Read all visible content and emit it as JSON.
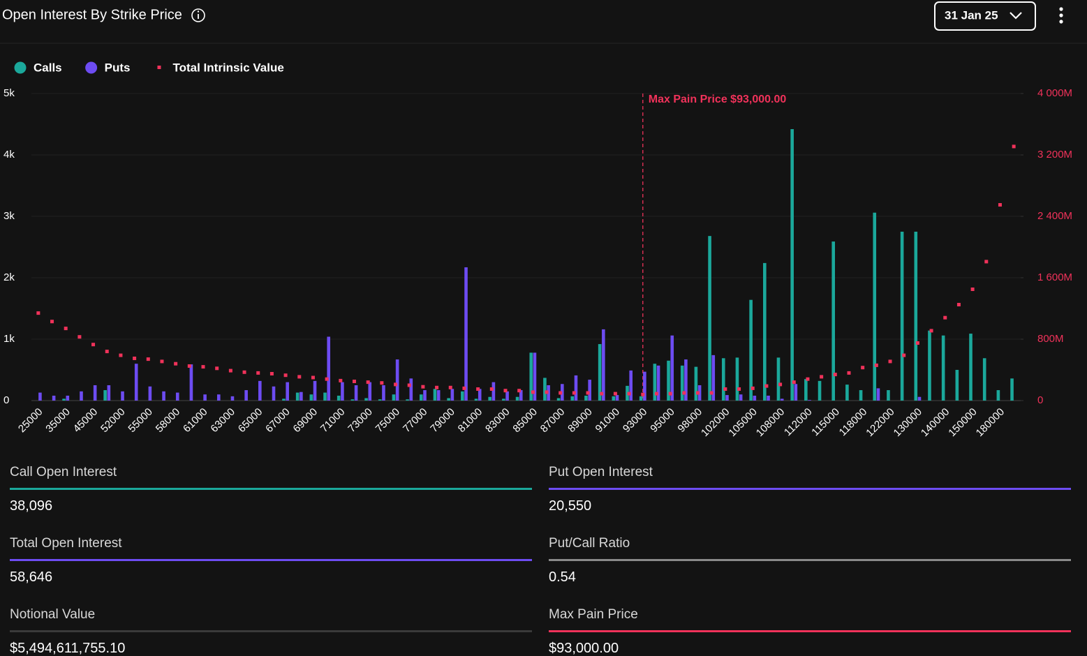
{
  "header": {
    "title": "Open Interest By Strike Price",
    "date": "31 Jan 25"
  },
  "chart_data": {
    "type": "bar",
    "categories": [
      "25000",
      null,
      "35000",
      null,
      "45000",
      null,
      "52000",
      null,
      "55000",
      null,
      "58000",
      null,
      "61000",
      null,
      "63000",
      null,
      "65000",
      null,
      "67000",
      null,
      "69000",
      null,
      "71000",
      null,
      "73000",
      null,
      "75000",
      null,
      "77000",
      null,
      "79000",
      null,
      "81000",
      null,
      "83000",
      null,
      "85000",
      null,
      "87000",
      null,
      "89000",
      null,
      "91000",
      null,
      "93000",
      null,
      "95000",
      null,
      "98000",
      null,
      "102000",
      null,
      "105000",
      null,
      "108000",
      null,
      "112000",
      null,
      "115000",
      null,
      "118000",
      null,
      "122000",
      null,
      "130000",
      null,
      "140000",
      null,
      "150000",
      null,
      "180000",
      null
    ],
    "series": [
      {
        "name": "Calls",
        "color": "#1ba89b",
        "type": "bar",
        "values": [
          0,
          0,
          30,
          0,
          0,
          170,
          0,
          0,
          0,
          0,
          0,
          0,
          0,
          0,
          0,
          0,
          0,
          0,
          30,
          130,
          100,
          130,
          80,
          20,
          40,
          20,
          100,
          20,
          100,
          190,
          40,
          150,
          30,
          60,
          30,
          60,
          780,
          370,
          40,
          70,
          80,
          920,
          70,
          240,
          70,
          600,
          650,
          570,
          550,
          2680,
          690,
          700,
          1640,
          2240,
          700,
          4420,
          350,
          320,
          2590,
          260,
          170,
          3060,
          170,
          2750,
          2750,
          1140,
          1060,
          500,
          1090,
          690,
          170,
          360
        ]
      },
      {
        "name": "Puts",
        "color": "#6d4cf2",
        "type": "bar",
        "values": [
          130,
          80,
          80,
          150,
          250,
          250,
          150,
          600,
          230,
          150,
          130,
          590,
          100,
          100,
          70,
          170,
          320,
          230,
          300,
          140,
          320,
          1040,
          300,
          250,
          300,
          250,
          670,
          360,
          170,
          170,
          190,
          2170,
          190,
          300,
          150,
          170,
          780,
          250,
          270,
          410,
          340,
          1160,
          90,
          490,
          470,
          570,
          1060,
          670,
          250,
          740,
          90,
          100,
          80,
          80,
          30,
          270,
          10,
          0,
          0,
          0,
          0,
          200,
          0,
          0,
          60,
          0,
          0,
          0,
          0,
          0,
          0,
          0
        ]
      },
      {
        "name": "Total Intrinsic Value",
        "color": "#f0325a",
        "type": "scatter",
        "axis": "y2",
        "values": [
          1140,
          1030,
          940,
          830,
          730,
          640,
          590,
          550,
          540,
          510,
          480,
          450,
          440,
          420,
          390,
          370,
          360,
          350,
          330,
          310,
          300,
          280,
          260,
          250,
          240,
          230,
          210,
          200,
          180,
          170,
          170,
          160,
          150,
          150,
          130,
          130,
          110,
          110,
          100,
          100,
          100,
          90,
          90,
          90,
          80,
          90,
          90,
          100,
          100,
          100,
          150,
          150,
          160,
          190,
          210,
          240,
          280,
          310,
          340,
          360,
          430,
          460,
          510,
          590,
          750,
          910,
          1080,
          1250,
          1450,
          1810,
          2550,
          3310
        ]
      }
    ],
    "ylim": [
      0,
      5000
    ],
    "yticks": [
      0,
      {
        "value": 1000,
        "label": "1k"
      },
      {
        "value": 2000,
        "label": "2k"
      },
      {
        "value": 3000,
        "label": "3k"
      },
      {
        "value": 4000,
        "label": "4k"
      },
      {
        "value": 5000,
        "label": "5k"
      }
    ],
    "y2lim": [
      0,
      4000
    ],
    "y2ticks": [
      0,
      {
        "value": 800,
        "label": "800M"
      },
      {
        "value": 1600,
        "label": "1 600M"
      },
      {
        "value": 2400,
        "label": "2 400M"
      },
      {
        "value": 3200,
        "label": "3 200M"
      },
      {
        "value": 4000,
        "label": "4 000M"
      }
    ],
    "grid": true,
    "annotation": {
      "text": "Max Pain Price $93,000.00",
      "at": "93000",
      "color": "#f0325a"
    }
  },
  "stats": [
    {
      "label": "Call Open Interest",
      "value": "38,096",
      "color": "#1ba89b"
    },
    {
      "label": "Put Open Interest",
      "value": "20,550",
      "color": "#6d4cf2"
    },
    {
      "label": "Total Open Interest",
      "value": "58,646",
      "color": "#6d4cf2"
    },
    {
      "label": "Put/Call Ratio",
      "value": "0.54",
      "color": "#8a8a8a"
    },
    {
      "label": "Notional Value",
      "value": "$5,494,611,755.10",
      "color": "#3a3a3a"
    },
    {
      "label": "Max Pain Price",
      "value": "$93,000.00",
      "color": "#f0325a"
    }
  ]
}
